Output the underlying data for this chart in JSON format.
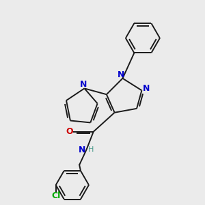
{
  "bg_color": "#ebebeb",
  "bond_color": "#1a1a1a",
  "N_color": "#0000cc",
  "O_color": "#cc0000",
  "Cl_color": "#00aa00",
  "H_color": "#4a9a8a",
  "font_size": 9,
  "figsize": [
    3.0,
    3.0
  ],
  "dpi": 100,
  "xlim": [
    0,
    10
  ],
  "ylim": [
    0,
    10
  ]
}
